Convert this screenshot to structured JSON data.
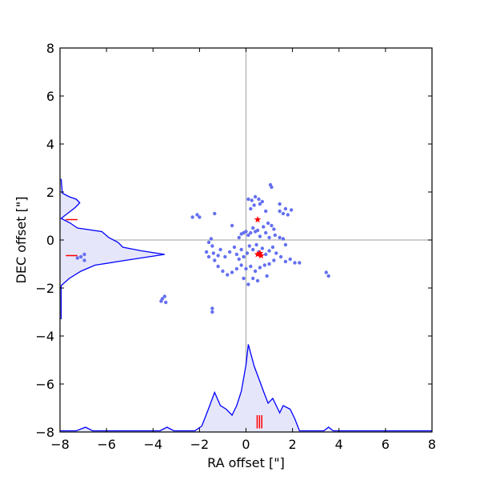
{
  "chart_data": {
    "type": "scatter",
    "xlabel": "RA offset [\"]",
    "ylabel": "DEC offset [\"]",
    "xlim": [
      -8,
      8
    ],
    "ylim": [
      -8,
      8
    ],
    "xticks": [
      -8,
      -6,
      -4,
      -2,
      0,
      2,
      4,
      6,
      8
    ],
    "yticks": [
      -8,
      -6,
      -4,
      -2,
      0,
      2,
      4,
      6,
      8
    ],
    "xtick_labels": [
      "−8",
      "−6",
      "−4",
      "−2",
      "0",
      "2",
      "4",
      "6",
      "8"
    ],
    "ytick_labels": [
      "−8",
      "−6",
      "−4",
      "−2",
      "0",
      "2",
      "4",
      "6",
      "8"
    ],
    "grid": false,
    "crosshair": {
      "x": 0,
      "y": 0,
      "color": "#b0b0b0"
    },
    "colors": {
      "points": "#6470f0",
      "histogram": "#0000ff",
      "histogram_fill": "#e6e6fa",
      "markers": "#ff0000"
    },
    "cluster_points": [
      [
        0.1,
        1.7
      ],
      [
        0.25,
        1.65
      ],
      [
        0.4,
        1.8
      ],
      [
        0.55,
        1.7
      ],
      [
        0.7,
        1.6
      ],
      [
        0.35,
        1.45
      ],
      [
        0.6,
        1.5
      ],
      [
        0.2,
        1.3
      ],
      [
        1.45,
        1.5
      ],
      [
        1.7,
        1.3
      ],
      [
        1.95,
        1.25
      ],
      [
        1.6,
        1.1
      ],
      [
        1.8,
        1.05
      ],
      [
        1.45,
        1.2
      ],
      [
        1.1,
        2.2
      ],
      [
        1.05,
        2.3
      ],
      [
        0.85,
        1.2
      ],
      [
        -2.1,
        1.05
      ],
      [
        -2.0,
        0.95
      ],
      [
        -2.3,
        0.95
      ],
      [
        -1.35,
        1.1
      ],
      [
        -0.6,
        0.6
      ],
      [
        -0.2,
        0.25
      ],
      [
        -0.3,
        0.1
      ],
      [
        -0.1,
        0.3
      ],
      [
        0.0,
        0.35
      ],
      [
        0.2,
        0.3
      ],
      [
        0.4,
        0.35
      ],
      [
        0.1,
        0.2
      ],
      [
        0.6,
        0.15
      ],
      [
        0.3,
        0.5
      ],
      [
        0.5,
        0.4
      ],
      [
        0.75,
        0.55
      ],
      [
        0.95,
        0.7
      ],
      [
        1.1,
        0.6
      ],
      [
        1.2,
        0.45
      ],
      [
        0.85,
        0.3
      ],
      [
        1.25,
        0.2
      ],
      [
        1.45,
        0.1
      ],
      [
        1.6,
        0.05
      ],
      [
        1.0,
        0.1
      ],
      [
        1.7,
        -0.2
      ],
      [
        -1.6,
        -0.1
      ],
      [
        -1.5,
        0.05
      ],
      [
        -1.45,
        -0.25
      ],
      [
        -1.7,
        -0.5
      ],
      [
        -1.4,
        -0.55
      ],
      [
        -1.2,
        -0.65
      ],
      [
        -1.6,
        -0.7
      ],
      [
        -1.35,
        -0.85
      ],
      [
        -1.1,
        -0.4
      ],
      [
        -0.9,
        -0.7
      ],
      [
        -0.7,
        -0.5
      ],
      [
        -0.5,
        -0.3
      ],
      [
        -0.4,
        -0.6
      ],
      [
        -0.2,
        -0.4
      ],
      [
        -0.3,
        -0.8
      ],
      [
        -0.1,
        -0.7
      ],
      [
        0.05,
        -0.55
      ],
      [
        0.15,
        -0.25
      ],
      [
        0.3,
        -0.4
      ],
      [
        0.45,
        -0.2
      ],
      [
        0.55,
        -0.5
      ],
      [
        0.7,
        -0.35
      ],
      [
        0.85,
        -0.6
      ],
      [
        1.0,
        -0.45
      ],
      [
        1.15,
        -0.3
      ],
      [
        1.3,
        -0.55
      ],
      [
        1.5,
        -0.7
      ],
      [
        1.7,
        -0.9
      ],
      [
        1.9,
        -0.8
      ],
      [
        2.1,
        -0.95
      ],
      [
        2.3,
        -0.95
      ],
      [
        1.2,
        -0.85
      ],
      [
        1.0,
        -1.0
      ],
      [
        0.8,
        -1.05
      ],
      [
        0.6,
        -1.15
      ],
      [
        0.4,
        -1.3
      ],
      [
        0.2,
        -1.1
      ],
      [
        0.0,
        -1.2
      ],
      [
        -0.2,
        -1.05
      ],
      [
        -0.4,
        -1.2
      ],
      [
        -0.6,
        -1.35
      ],
      [
        -0.8,
        -1.45
      ],
      [
        -1.0,
        -1.3
      ],
      [
        -1.2,
        -1.1
      ],
      [
        0.5,
        -1.7
      ],
      [
        0.3,
        -1.6
      ],
      [
        0.1,
        -1.85
      ],
      [
        0.9,
        -1.5
      ],
      [
        -0.1,
        -1.6
      ],
      [
        -1.45,
        -2.85
      ],
      [
        -1.45,
        -3.0
      ],
      [
        -3.5,
        -2.35
      ],
      [
        -3.65,
        -2.55
      ],
      [
        -3.45,
        -2.6
      ],
      [
        -3.6,
        -2.45
      ],
      [
        -7.1,
        -0.7
      ],
      [
        -6.95,
        -0.85
      ],
      [
        -7.25,
        -0.75
      ],
      [
        -6.95,
        -0.6
      ],
      [
        3.45,
        -1.35
      ],
      [
        3.55,
        -1.5
      ]
    ],
    "star_markers": [
      [
        0.5,
        0.85
      ],
      [
        0.5,
        -0.6
      ],
      [
        0.65,
        -0.65
      ],
      [
        0.6,
        -0.55
      ]
    ],
    "bar_markers_bottom": {
      "x": [
        0.48,
        0.58,
        0.68
      ],
      "y_from": -7.85,
      "y_to": -7.3
    },
    "bar_markers_left": [
      {
        "y": 0.85,
        "x_from": -7.75,
        "x_to": -7.25
      },
      {
        "y": -0.65,
        "x_from": -7.75,
        "x_to": -7.25
      }
    ],
    "histogram_x": [
      [
        -8,
        -7.95
      ],
      [
        -7.3,
        -7.95
      ],
      [
        -6.9,
        -7.8
      ],
      [
        -6.6,
        -7.95
      ],
      [
        -3.7,
        -7.95
      ],
      [
        -3.4,
        -7.8
      ],
      [
        -3.1,
        -7.95
      ],
      [
        -2.2,
        -7.95
      ],
      [
        -1.9,
        -7.75
      ],
      [
        -1.6,
        -7.0
      ],
      [
        -1.35,
        -6.35
      ],
      [
        -1.1,
        -6.9
      ],
      [
        -0.85,
        -7.05
      ],
      [
        -0.6,
        -7.3
      ],
      [
        -0.4,
        -6.9
      ],
      [
        -0.2,
        -6.3
      ],
      [
        0.0,
        -5.2
      ],
      [
        0.1,
        -4.35
      ],
      [
        0.35,
        -5.25
      ],
      [
        0.6,
        -5.9
      ],
      [
        0.75,
        -6.3
      ],
      [
        0.95,
        -6.8
      ],
      [
        1.15,
        -6.6
      ],
      [
        1.45,
        -7.2
      ],
      [
        1.6,
        -6.9
      ],
      [
        1.9,
        -7.05
      ],
      [
        2.1,
        -7.45
      ],
      [
        2.3,
        -7.95
      ],
      [
        3.35,
        -7.95
      ],
      [
        3.55,
        -7.8
      ],
      [
        3.75,
        -7.95
      ],
      [
        8,
        -7.95
      ]
    ],
    "histogram_y": [
      [
        -7.95,
        2.55
      ],
      [
        -7.9,
        1.95
      ],
      [
        -7.6,
        1.8
      ],
      [
        -7.3,
        1.7
      ],
      [
        -7.15,
        1.55
      ],
      [
        -7.35,
        1.35
      ],
      [
        -7.95,
        0.9
      ],
      [
        -7.55,
        0.7
      ],
      [
        -7.25,
        0.5
      ],
      [
        -6.2,
        0.35
      ],
      [
        -5.9,
        0.1
      ],
      [
        -5.5,
        -0.1
      ],
      [
        -5.3,
        -0.3
      ],
      [
        -4.5,
        -0.45
      ],
      [
        -3.5,
        -0.6
      ],
      [
        -5.2,
        -0.85
      ],
      [
        -6.5,
        -1.05
      ],
      [
        -7.1,
        -1.3
      ],
      [
        -7.6,
        -1.6
      ],
      [
        -7.95,
        -1.9
      ],
      [
        -7.95,
        -3.3
      ]
    ]
  }
}
